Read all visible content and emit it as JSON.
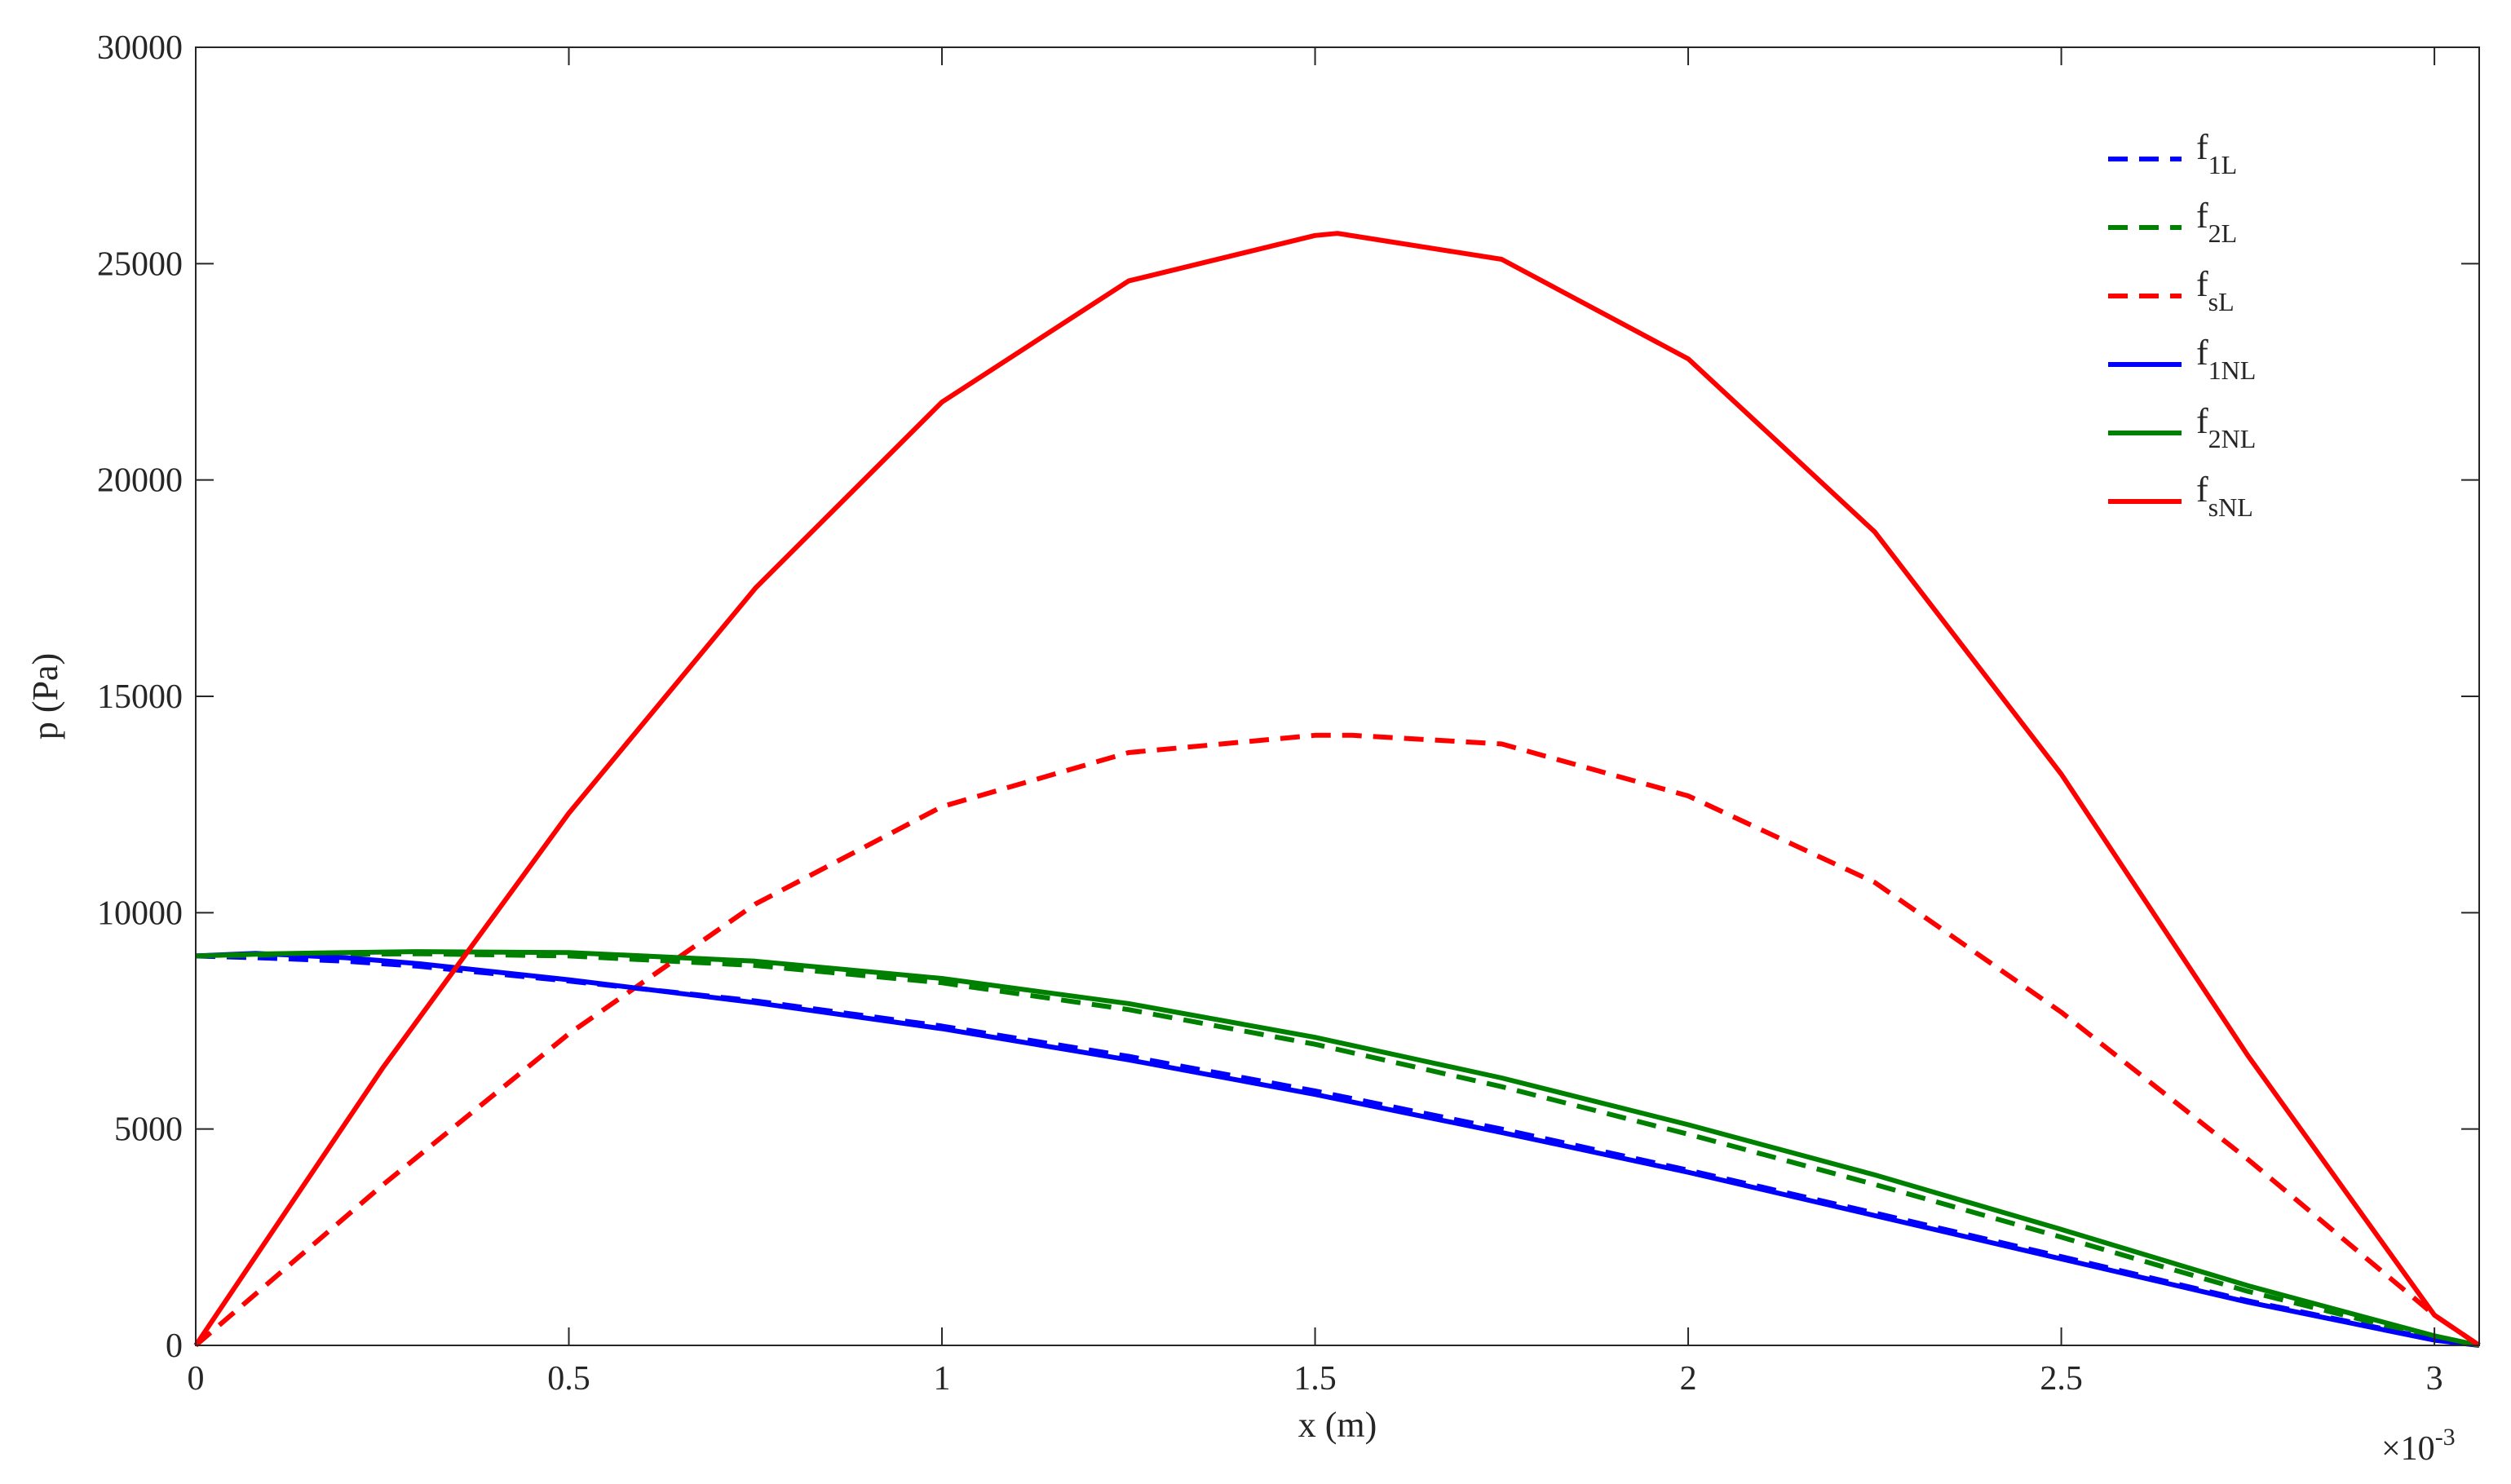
{
  "chart_data": {
    "type": "line",
    "xlabel": "x (m)",
    "ylabel": "p (Pa)",
    "x_multiplier_label": "×10",
    "x_multiplier_exponent": "-3",
    "xlim": [
      0,
      3.06
    ],
    "ylim": [
      0,
      30000
    ],
    "xticks": [
      0,
      0.5,
      1,
      1.5,
      2,
      2.5,
      3
    ],
    "xtick_labels": [
      "0",
      "0.5",
      "1",
      "1.5",
      "2",
      "2.5",
      "3"
    ],
    "yticks": [
      0,
      5000,
      10000,
      15000,
      20000,
      25000,
      30000
    ],
    "ytick_labels": [
      "0",
      "5000",
      "10000",
      "15000",
      "20000",
      "25000",
      "30000"
    ],
    "grid": false,
    "legend_position": "top-right",
    "series": [
      {
        "name": "f1L",
        "label_main": "f",
        "label_sub": "1L",
        "color": "#0000ff",
        "style": "dashed",
        "x": [
          0,
          0.1,
          0.2,
          0.3,
          0.5,
          0.75,
          1.0,
          1.25,
          1.5,
          1.75,
          2.0,
          2.25,
          2.5,
          2.75,
          3.0,
          3.06
        ],
        "y": [
          9000,
          8950,
          8880,
          8760,
          8420,
          7960,
          7380,
          6680,
          5880,
          5000,
          4050,
          3060,
          2050,
          1030,
          140,
          0
        ]
      },
      {
        "name": "f2L",
        "label_main": "f",
        "label_sub": "2L",
        "color": "#008000",
        "style": "dashed",
        "x": [
          0,
          0.1,
          0.2,
          0.3,
          0.5,
          0.75,
          1.0,
          1.25,
          1.5,
          1.75,
          2.0,
          2.25,
          2.5,
          2.75,
          3.0,
          3.06
        ],
        "y": [
          9000,
          9020,
          9040,
          9050,
          9000,
          8780,
          8380,
          7760,
          6960,
          5980,
          4880,
          3720,
          2500,
          1250,
          180,
          0
        ]
      },
      {
        "name": "fsL",
        "label_main": "f",
        "label_sub": "sL",
        "color": "#ff0000",
        "style": "dashed",
        "x": [
          0,
          0.25,
          0.5,
          0.75,
          1.0,
          1.25,
          1.5,
          1.55,
          1.75,
          2.0,
          2.25,
          2.5,
          2.75,
          3.0,
          3.06
        ],
        "y": [
          0,
          3700,
          7200,
          10200,
          12450,
          13700,
          14100,
          14100,
          13900,
          12700,
          10700,
          7700,
          4300,
          700,
          0
        ]
      },
      {
        "name": "f1NL",
        "label_main": "f",
        "label_sub": "1NL",
        "color": "#0000ff",
        "style": "solid",
        "x": [
          0,
          0.08,
          0.2,
          0.3,
          0.5,
          0.75,
          1.0,
          1.25,
          1.5,
          1.75,
          2.0,
          2.25,
          2.5,
          2.75,
          3.0,
          3.06
        ],
        "y": [
          9000,
          9060,
          8960,
          8820,
          8450,
          7920,
          7320,
          6600,
          5800,
          4920,
          4000,
          3000,
          2000,
          1000,
          120,
          0
        ]
      },
      {
        "name": "f2NL",
        "label_main": "f",
        "label_sub": "2NL",
        "color": "#008000",
        "style": "solid",
        "x": [
          0,
          0.1,
          0.2,
          0.3,
          0.5,
          0.75,
          1.0,
          1.25,
          1.5,
          1.75,
          2.0,
          2.25,
          2.5,
          2.75,
          3.0,
          3.06
        ],
        "y": [
          9000,
          9050,
          9080,
          9100,
          9080,
          8880,
          8480,
          7900,
          7120,
          6180,
          5100,
          3940,
          2680,
          1380,
          220,
          0
        ]
      },
      {
        "name": "fsNL",
        "label_main": "f",
        "label_sub": "sNL",
        "color": "#ff0000",
        "style": "solid",
        "x": [
          0,
          0.25,
          0.5,
          0.75,
          1.0,
          1.25,
          1.5,
          1.53,
          1.75,
          2.0,
          2.25,
          2.5,
          2.75,
          3.0,
          3.06
        ],
        "y": [
          0,
          6400,
          12300,
          17500,
          21800,
          24600,
          25650,
          25700,
          25100,
          22800,
          18800,
          13200,
          6700,
          700,
          0
        ]
      }
    ]
  }
}
